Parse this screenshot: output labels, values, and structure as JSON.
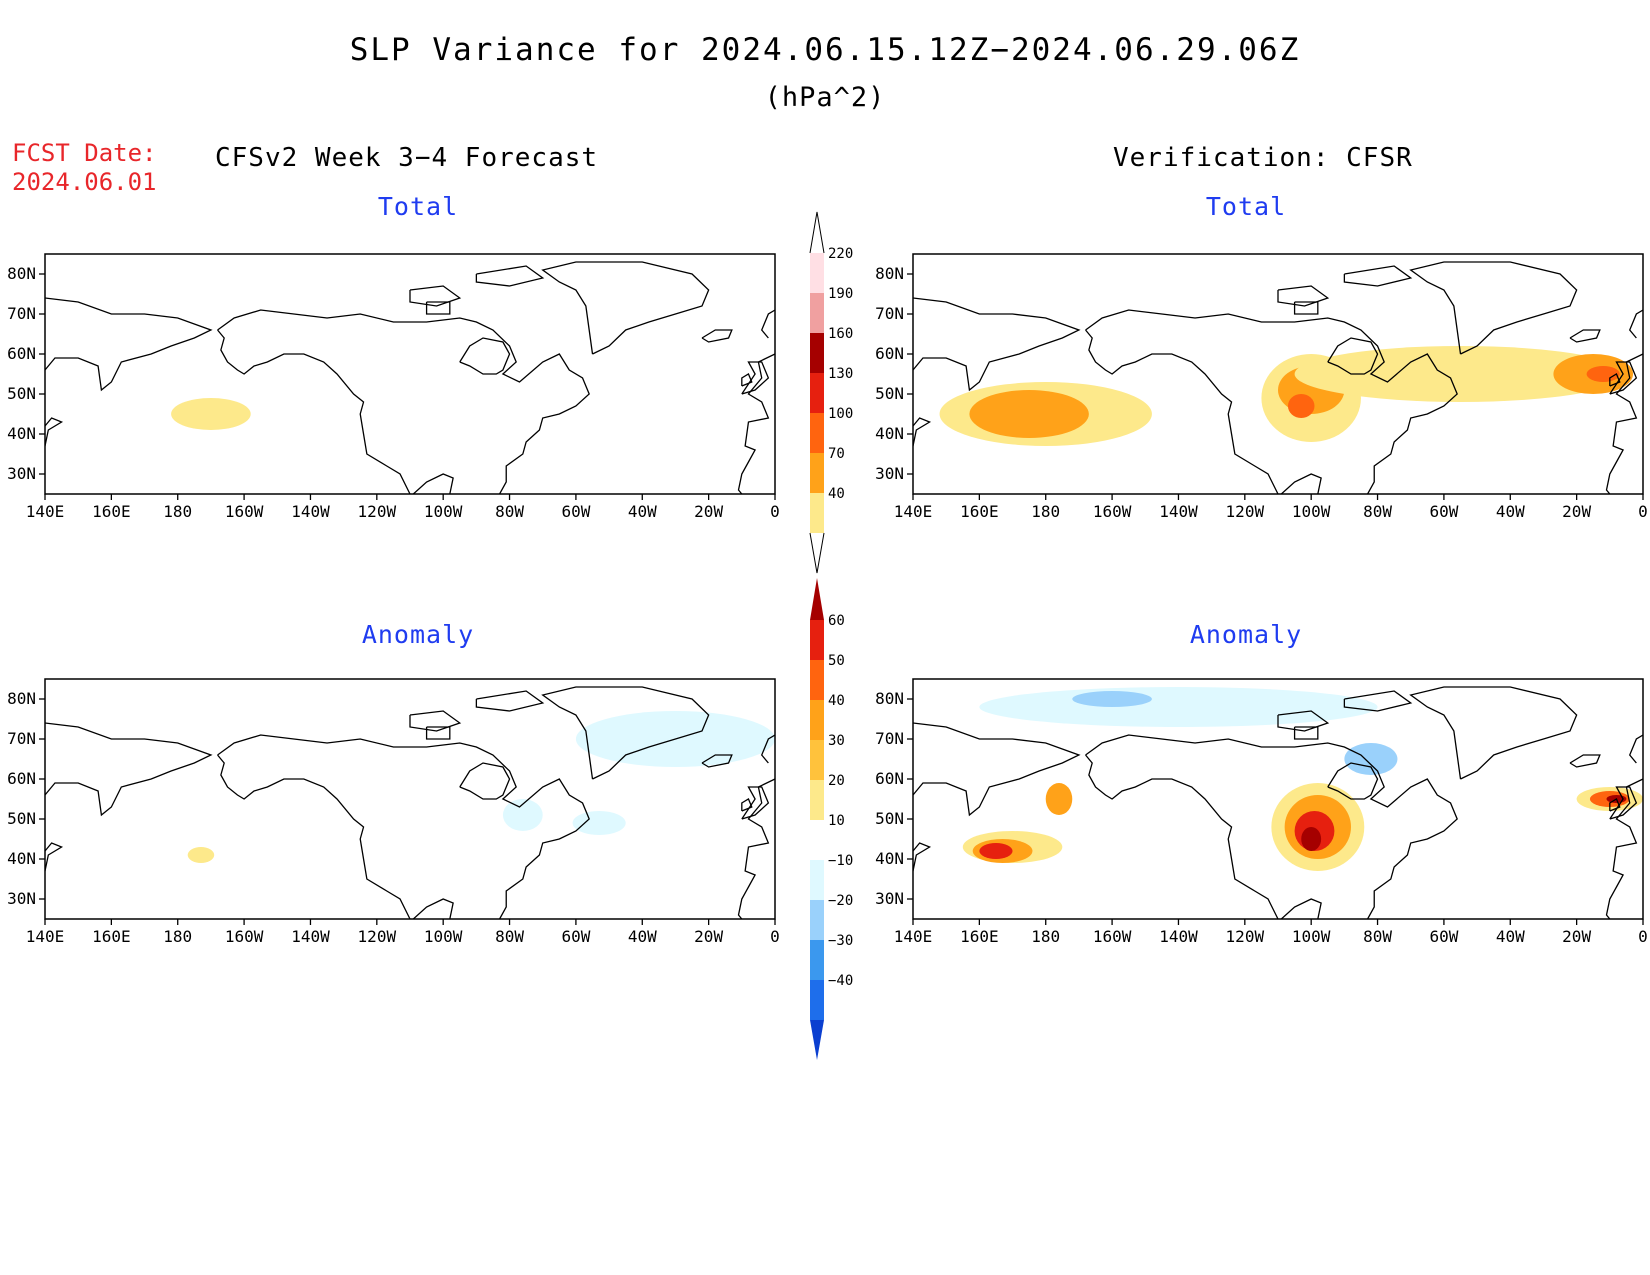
{
  "title": "SLP Variance for 2024.06.15.12Z−2024.06.29.06Z",
  "units": "(hPa^2)",
  "fcst_date_label": "FCST Date:",
  "fcst_date": "2024.06.01",
  "left_column_header": "CFSv2 Week 3−4 Forecast",
  "right_column_header": "Verification: CFSR",
  "panels": [
    {
      "id": "fcst-total",
      "title": "Total"
    },
    {
      "id": "verif-total",
      "title": "Total"
    },
    {
      "id": "fcst-anom",
      "title": "Anomaly"
    },
    {
      "id": "verif-anom",
      "title": "Anomaly"
    }
  ],
  "axes": {
    "x_ticks": [
      "140E",
      "160E",
      "180",
      "160W",
      "140W",
      "120W",
      "100W",
      "80W",
      "60W",
      "40W",
      "20W",
      "0"
    ],
    "lon_range": [
      140,
      360
    ],
    "top_row_lat_ticks": [
      "80N",
      "70N",
      "60N",
      "50N",
      "40N",
      "30N"
    ],
    "top_row_lat_range": [
      25,
      85
    ],
    "bottom_row_lat_ticks": [
      "80N",
      "70N",
      "60N",
      "50N",
      "40N",
      "30N"
    ],
    "bottom_row_lat_range": [
      25,
      85
    ]
  },
  "colorbars": {
    "total": {
      "levels": [
        "40",
        "70",
        "100",
        "130",
        "160",
        "190",
        "220"
      ],
      "colors": [
        "#fde98b",
        "#ffa219",
        "#ff640f",
        "#e6200f",
        "#a50000",
        "#f0a0a0",
        "#ffdfe4"
      ]
    },
    "anomaly": {
      "levels": [
        "60",
        "50",
        "40",
        "30",
        "20",
        "10",
        "−10",
        "−20",
        "−30",
        "−40"
      ],
      "colors": [
        "#a50000",
        "#e6200f",
        "#ff640f",
        "#ffa219",
        "#ffc23c",
        "#fde98b",
        "#ffffff",
        "#dff9ff",
        "#9ad1fb",
        "#3b98ee",
        "#1e6eeb",
        "#0b3fd0"
      ]
    }
  },
  "chart_data": [
    {
      "type": "heatmap",
      "title": "Total",
      "panel": "fcst-total",
      "blobs": [
        {
          "lon": 190,
          "lat": 45,
          "rlon": 12,
          "rlat": 4,
          "level": 0
        }
      ]
    },
    {
      "type": "heatmap",
      "title": "Total",
      "panel": "verif-total",
      "blobs": [
        {
          "lon": 180,
          "lat": 45,
          "rlon": 32,
          "rlat": 8,
          "level": 0
        },
        {
          "lon": 175,
          "lat": 45,
          "rlon": 18,
          "rlat": 6,
          "level": 1
        },
        {
          "lon": 260,
          "lat": 49,
          "rlon": 15,
          "rlat": 11,
          "level": 0
        },
        {
          "lon": 260,
          "lat": 51,
          "rlon": 10,
          "rlat": 6,
          "level": 1
        },
        {
          "lon": 257,
          "lat": 47,
          "rlon": 4,
          "rlat": 3,
          "level": 2
        },
        {
          "lon": 305,
          "lat": 55,
          "rlon": 50,
          "rlat": 7,
          "level": 0
        },
        {
          "lon": 345,
          "lat": 55,
          "rlon": 12,
          "rlat": 5,
          "level": 1
        },
        {
          "lon": 348,
          "lat": 55,
          "rlon": 5,
          "rlat": 2,
          "level": 2
        }
      ]
    },
    {
      "type": "heatmap",
      "title": "Anomaly",
      "panel": "fcst-anom",
      "blobs": [
        {
          "lon": 330,
          "lat": 70,
          "rlon": 30,
          "rlat": 7,
          "level": -1
        },
        {
          "lon": 284,
          "lat": 51,
          "rlon": 6,
          "rlat": 4,
          "level": -1
        },
        {
          "lon": 307,
          "lat": 49,
          "rlon": 8,
          "rlat": 3,
          "level": -1
        },
        {
          "lon": 187,
          "lat": 41,
          "rlon": 4,
          "rlat": 2,
          "level": 0
        }
      ]
    },
    {
      "type": "heatmap",
      "title": "Anomaly",
      "panel": "verif-anom",
      "blobs": [
        {
          "lon": 220,
          "lat": 78,
          "rlon": 60,
          "rlat": 5,
          "level": -1
        },
        {
          "lon": 200,
          "lat": 80,
          "rlon": 12,
          "rlat": 2,
          "level": -2
        },
        {
          "lon": 278,
          "lat": 65,
          "rlon": 8,
          "rlat": 4,
          "level": -2
        },
        {
          "lon": 170,
          "lat": 43,
          "rlon": 15,
          "rlat": 4,
          "level": 0
        },
        {
          "lon": 167,
          "lat": 42,
          "rlon": 9,
          "rlat": 3,
          "level": 2
        },
        {
          "lon": 165,
          "lat": 42,
          "rlon": 5,
          "rlat": 2,
          "level": 4
        },
        {
          "lon": 184,
          "lat": 55,
          "rlon": 4,
          "rlat": 4,
          "level": 2
        },
        {
          "lon": 262,
          "lat": 48,
          "rlon": 14,
          "rlat": 11,
          "level": 0
        },
        {
          "lon": 262,
          "lat": 48,
          "rlon": 10,
          "rlat": 8,
          "level": 2
        },
        {
          "lon": 261,
          "lat": 47,
          "rlon": 6,
          "rlat": 5,
          "level": 4
        },
        {
          "lon": 260,
          "lat": 45,
          "rlon": 3,
          "rlat": 3,
          "level": 5
        },
        {
          "lon": 350,
          "lat": 55,
          "rlon": 10,
          "rlat": 3,
          "level": 0
        },
        {
          "lon": 350,
          "lat": 55,
          "rlon": 6,
          "rlat": 2,
          "level": 3
        },
        {
          "lon": 352,
          "lat": 55,
          "rlon": 3,
          "rlat": 1,
          "level": 5
        }
      ]
    }
  ]
}
